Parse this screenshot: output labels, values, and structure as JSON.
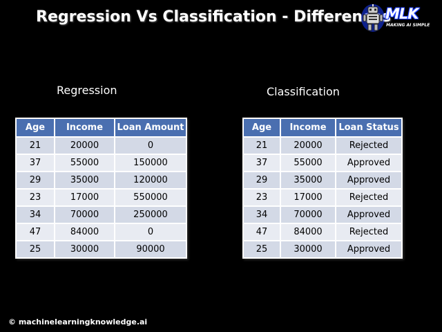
{
  "title": "Regression Vs Classification - Differences",
  "logo": {
    "text": "MLK",
    "tagline": "MAKING AI SIMPLE",
    "icon": "robot-icon",
    "accent_color": "#1a3cff"
  },
  "colors": {
    "background": "#000000",
    "header_fill": "#4a6fb0",
    "row_fill_odd": "#d3d9e6",
    "row_fill_even": "#e8ebf2"
  },
  "regression": {
    "heading": "Regression",
    "headers": [
      "Age",
      "Income",
      "Loan Amount"
    ],
    "rows": [
      [
        "21",
        "20000",
        "0"
      ],
      [
        "37",
        "55000",
        "150000"
      ],
      [
        "29",
        "35000",
        "120000"
      ],
      [
        "23",
        "17000",
        "550000"
      ],
      [
        "34",
        "70000",
        "250000"
      ],
      [
        "47",
        "84000",
        "0"
      ],
      [
        "25",
        "30000",
        "90000"
      ]
    ]
  },
  "classification": {
    "heading": "Classification",
    "headers": [
      "Age",
      "Income",
      "Loan Status"
    ],
    "rows": [
      [
        "21",
        "20000",
        "Rejected"
      ],
      [
        "37",
        "55000",
        "Approved"
      ],
      [
        "29",
        "35000",
        "Approved"
      ],
      [
        "23",
        "17000",
        "Rejected"
      ],
      [
        "34",
        "70000",
        "Approved"
      ],
      [
        "47",
        "84000",
        "Rejected"
      ],
      [
        "25",
        "30000",
        "Approved"
      ]
    ]
  },
  "footer": "© machinelearningknowledge.ai"
}
